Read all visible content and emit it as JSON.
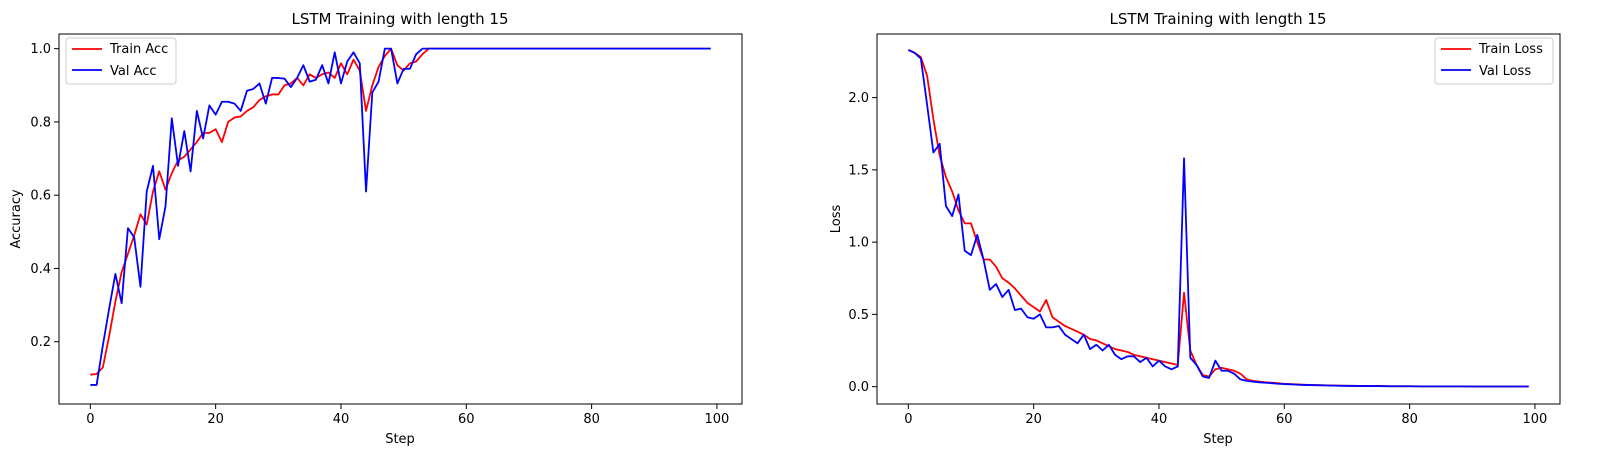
{
  "charts": [
    {
      "type": "line",
      "title": "LSTM Training with length 15",
      "xlabel": "Step",
      "ylabel": "Accuracy",
      "xlim": [
        -5,
        104
      ],
      "ylim": [
        0.03,
        1.04
      ],
      "xticks": [
        0,
        20,
        40,
        60,
        80,
        100
      ],
      "xtick_labels": [
        "0",
        "20",
        "40",
        "60",
        "80",
        "100"
      ],
      "yticks": [
        0.2,
        0.4,
        0.6,
        0.8,
        1.0
      ],
      "ytick_labels": [
        "0.2",
        "0.4",
        "0.6",
        "0.8",
        "1.0"
      ],
      "legend": "top-left",
      "grid": false,
      "series": [
        {
          "name": "Train Acc",
          "color": "#ff0000",
          "values": [
            0.11,
            0.112,
            0.13,
            0.215,
            0.31,
            0.39,
            0.44,
            0.49,
            0.548,
            0.52,
            0.61,
            0.665,
            0.615,
            0.66,
            0.695,
            0.705,
            0.725,
            0.745,
            0.77,
            0.77,
            0.78,
            0.745,
            0.8,
            0.812,
            0.815,
            0.83,
            0.84,
            0.86,
            0.87,
            0.875,
            0.875,
            0.9,
            0.905,
            0.92,
            0.9,
            0.93,
            0.92,
            0.93,
            0.935,
            0.92,
            0.96,
            0.93,
            0.97,
            0.94,
            0.83,
            0.9,
            0.95,
            0.98,
            1.0,
            0.955,
            0.94,
            0.96,
            0.965,
            0.985,
            1.0,
            1.0,
            1.0,
            1.0,
            1.0,
            1.0,
            1.0,
            1.0,
            1.0,
            1.0,
            1.0,
            1.0,
            1.0,
            1.0,
            1.0,
            1.0,
            1.0,
            1.0,
            1.0,
            1.0,
            1.0,
            1.0,
            1.0,
            1.0,
            1.0,
            1.0,
            1.0,
            1.0,
            1.0,
            1.0,
            1.0,
            1.0,
            1.0,
            1.0,
            1.0,
            1.0,
            1.0,
            1.0,
            1.0,
            1.0,
            1.0,
            1.0,
            1.0,
            1.0,
            1.0,
            1.0
          ]
        },
        {
          "name": "Val Acc",
          "color": "#0000ff",
          "values": [
            0.082,
            0.082,
            0.19,
            0.29,
            0.385,
            0.305,
            0.51,
            0.485,
            0.35,
            0.61,
            0.68,
            0.48,
            0.57,
            0.81,
            0.68,
            0.775,
            0.665,
            0.83,
            0.755,
            0.845,
            0.82,
            0.855,
            0.855,
            0.85,
            0.83,
            0.885,
            0.89,
            0.905,
            0.85,
            0.92,
            0.92,
            0.918,
            0.895,
            0.92,
            0.955,
            0.91,
            0.915,
            0.955,
            0.905,
            0.99,
            0.905,
            0.965,
            0.99,
            0.96,
            0.61,
            0.88,
            0.91,
            1.0,
            1.0,
            0.905,
            0.945,
            0.945,
            0.985,
            1.0,
            1.0,
            1.0,
            1.0,
            1.0,
            1.0,
            1.0,
            1.0,
            1.0,
            1.0,
            1.0,
            1.0,
            1.0,
            1.0,
            1.0,
            1.0,
            1.0,
            1.0,
            1.0,
            1.0,
            1.0,
            1.0,
            1.0,
            1.0,
            1.0,
            1.0,
            1.0,
            1.0,
            1.0,
            1.0,
            1.0,
            1.0,
            1.0,
            1.0,
            1.0,
            1.0,
            1.0,
            1.0,
            1.0,
            1.0,
            1.0,
            1.0,
            1.0,
            1.0,
            1.0,
            1.0,
            1.0
          ]
        }
      ]
    },
    {
      "type": "line",
      "title": "LSTM Training with length 15",
      "xlabel": "Step",
      "ylabel": "Loss",
      "xlim": [
        -5,
        104
      ],
      "ylim": [
        -0.12,
        2.44
      ],
      "xticks": [
        0,
        20,
        40,
        60,
        80,
        100
      ],
      "xtick_labels": [
        "0",
        "20",
        "40",
        "60",
        "80",
        "100"
      ],
      "yticks": [
        0.0,
        0.5,
        1.0,
        1.5,
        2.0
      ],
      "ytick_labels": [
        "0.0",
        "0.5",
        "1.0",
        "1.5",
        "2.0"
      ],
      "legend": "top-right",
      "grid": false,
      "series": [
        {
          "name": "Train Loss",
          "color": "#ff0000",
          "values": [
            2.33,
            2.31,
            2.28,
            2.15,
            1.85,
            1.6,
            1.45,
            1.35,
            1.22,
            1.13,
            1.13,
            1.0,
            0.88,
            0.88,
            0.83,
            0.75,
            0.72,
            0.68,
            0.63,
            0.58,
            0.55,
            0.52,
            0.6,
            0.48,
            0.45,
            0.42,
            0.4,
            0.38,
            0.36,
            0.33,
            0.32,
            0.3,
            0.28,
            0.26,
            0.25,
            0.24,
            0.22,
            0.21,
            0.2,
            0.19,
            0.18,
            0.17,
            0.16,
            0.15,
            0.65,
            0.25,
            0.15,
            0.08,
            0.07,
            0.12,
            0.13,
            0.12,
            0.11,
            0.09,
            0.05,
            0.04,
            0.035,
            0.03,
            0.027,
            0.024,
            0.02,
            0.018,
            0.016,
            0.014,
            0.012,
            0.011,
            0.01,
            0.009,
            0.008,
            0.007,
            0.006,
            0.006,
            0.005,
            0.005,
            0.004,
            0.004,
            0.004,
            0.003,
            0.003,
            0.003,
            0.003,
            0.003,
            0.002,
            0.002,
            0.002,
            0.002,
            0.002,
            0.002,
            0.002,
            0.002,
            0.001,
            0.001,
            0.001,
            0.001,
            0.001,
            0.001,
            0.001,
            0.001,
            0.001,
            0.001
          ]
        },
        {
          "name": "Val Loss",
          "color": "#0000ff",
          "values": [
            2.33,
            2.31,
            2.27,
            1.95,
            1.62,
            1.68,
            1.25,
            1.18,
            1.33,
            0.94,
            0.91,
            1.05,
            0.88,
            0.67,
            0.71,
            0.62,
            0.67,
            0.53,
            0.54,
            0.48,
            0.47,
            0.5,
            0.41,
            0.41,
            0.42,
            0.36,
            0.33,
            0.3,
            0.36,
            0.26,
            0.29,
            0.25,
            0.29,
            0.22,
            0.19,
            0.21,
            0.21,
            0.17,
            0.2,
            0.14,
            0.18,
            0.14,
            0.12,
            0.14,
            1.58,
            0.2,
            0.15,
            0.07,
            0.06,
            0.18,
            0.11,
            0.11,
            0.09,
            0.05,
            0.04,
            0.035,
            0.03,
            0.027,
            0.024,
            0.02,
            0.018,
            0.016,
            0.014,
            0.012,
            0.011,
            0.01,
            0.009,
            0.008,
            0.007,
            0.006,
            0.006,
            0.005,
            0.005,
            0.004,
            0.004,
            0.004,
            0.003,
            0.003,
            0.003,
            0.003,
            0.003,
            0.002,
            0.002,
            0.002,
            0.002,
            0.002,
            0.002,
            0.002,
            0.002,
            0.001,
            0.001,
            0.001,
            0.001,
            0.001,
            0.001,
            0.001,
            0.001,
            0.001,
            0.001,
            0.001
          ]
        }
      ]
    }
  ]
}
